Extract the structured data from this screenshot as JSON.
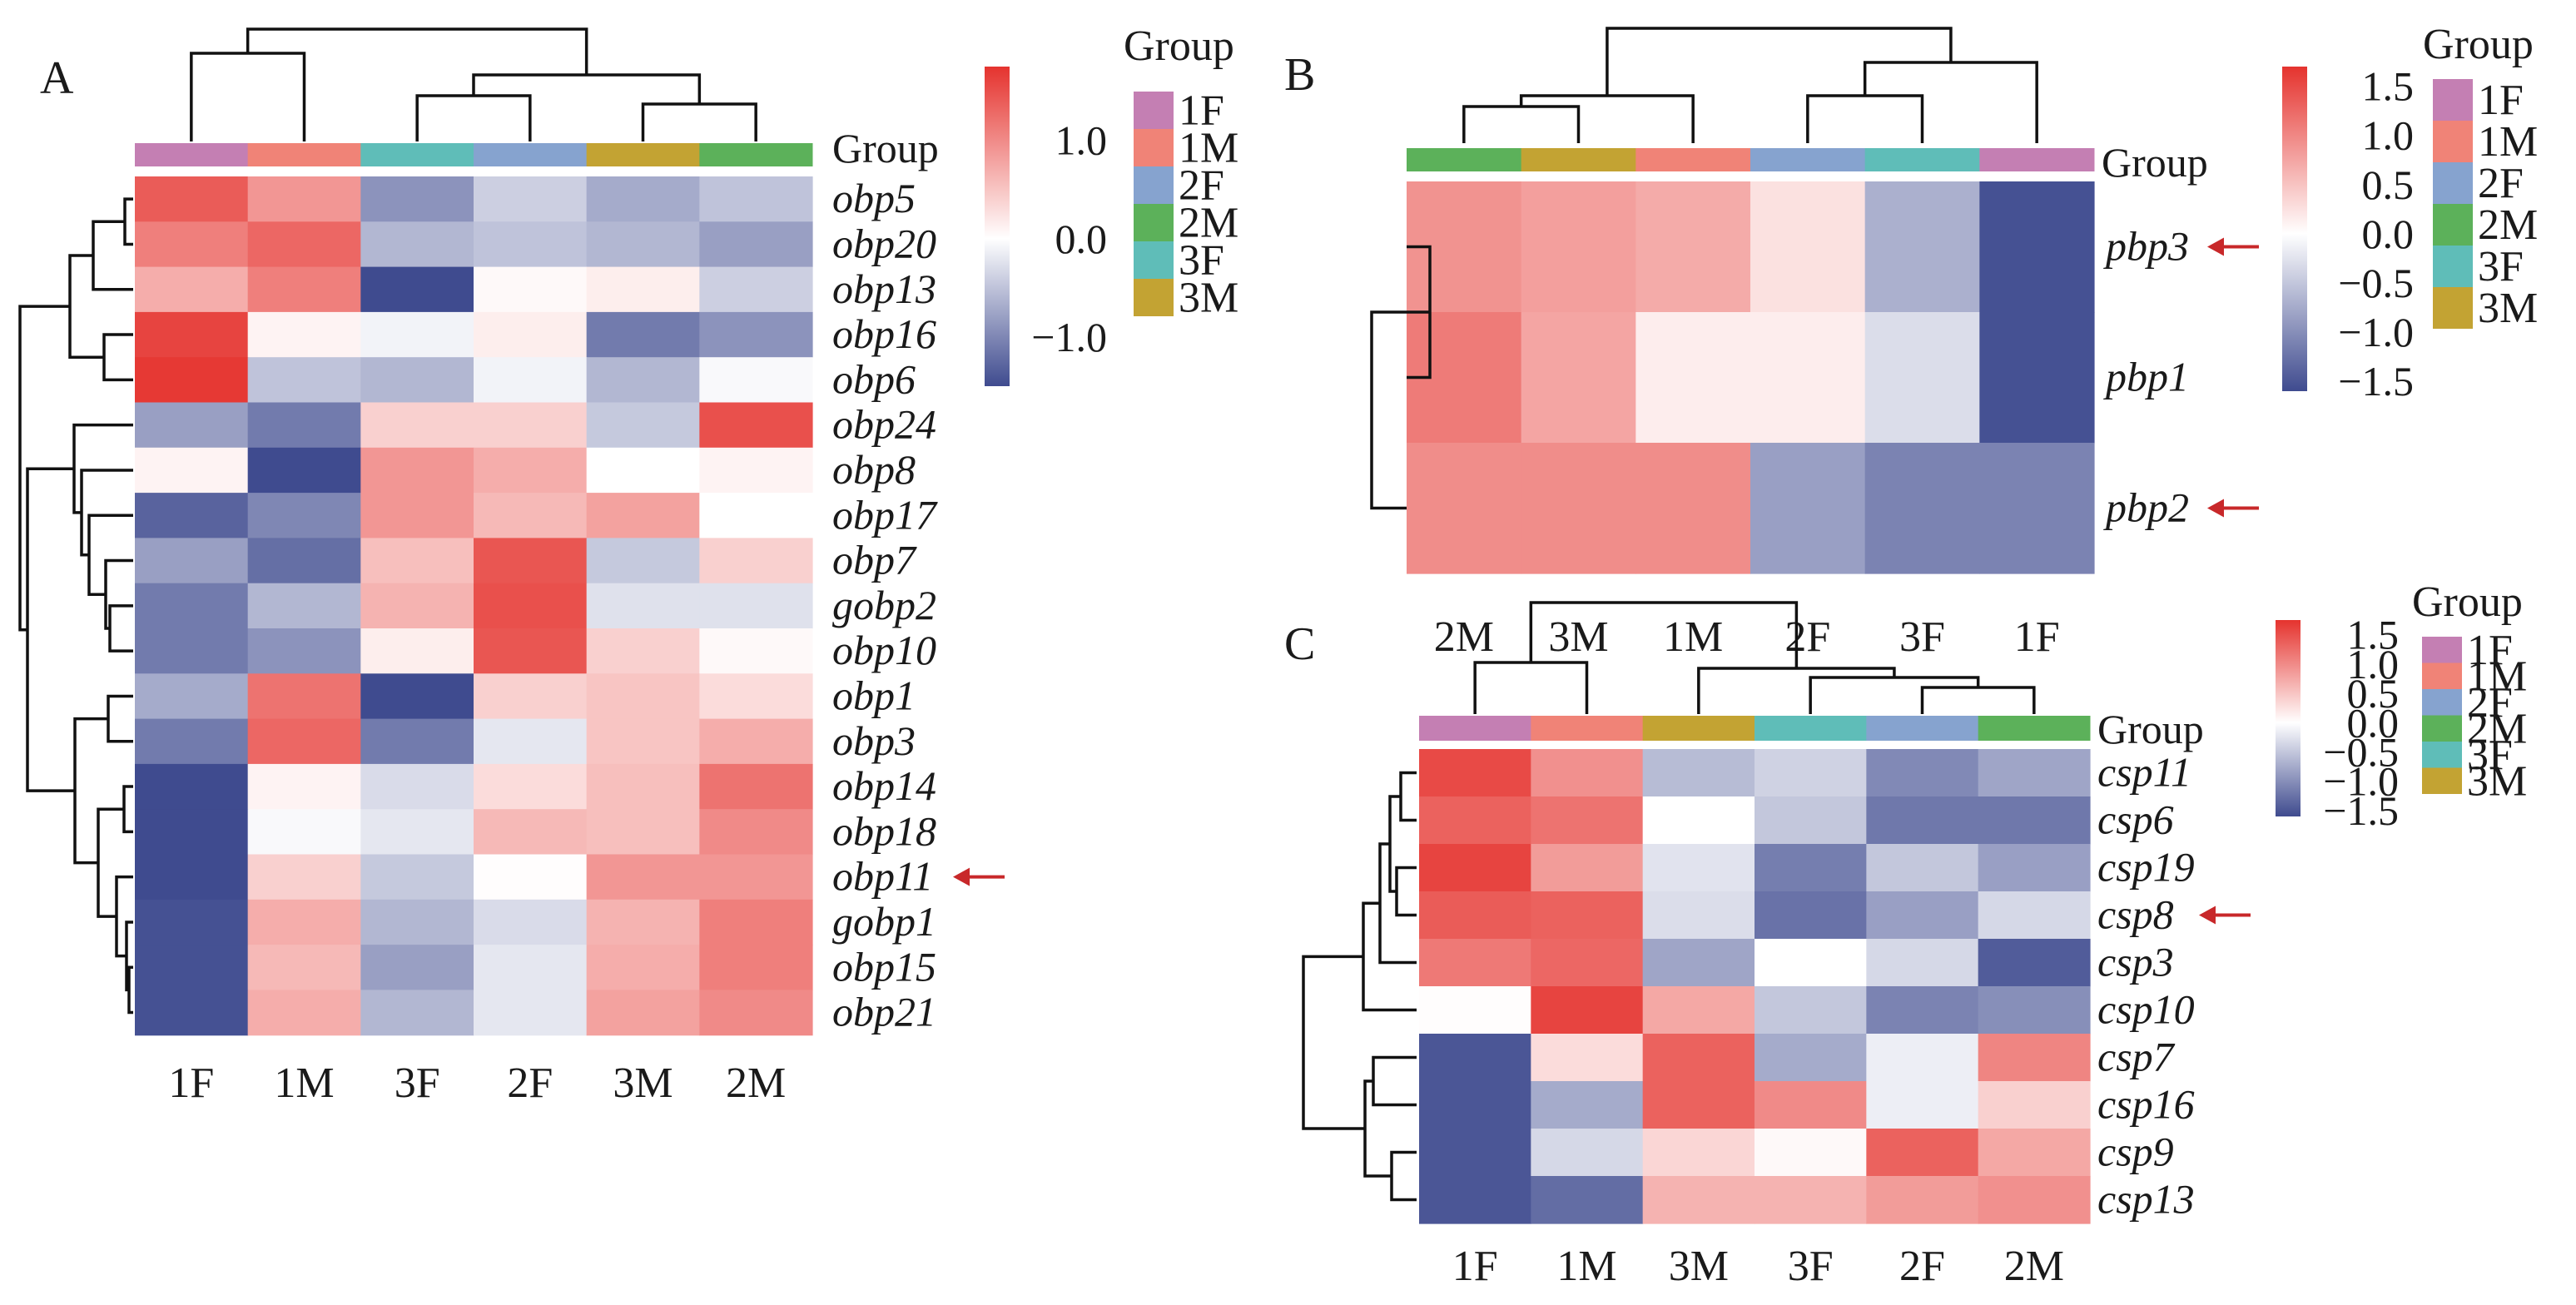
{
  "chart_data": [
    {
      "type": "heatmap",
      "panel": "A",
      "title": "",
      "annotation_label": "Group",
      "columns": [
        "1F",
        "1M",
        "3F",
        "2F",
        "3M",
        "2M"
      ],
      "rows": [
        "obp5",
        "obp20",
        "obp13",
        "obp16",
        "obp6",
        "obp24",
        "obp8",
        "obp17",
        "obp7",
        "gobp2",
        "obp10",
        "obp1",
        "obp3",
        "obp14",
        "obp18",
        "obp11",
        "gobp1",
        "obp15",
        "obp21"
      ],
      "highlighted_rows": [
        "obp11"
      ],
      "values": [
        [
          1.4,
          0.9,
          -0.9,
          -0.4,
          -0.7,
          -0.5
        ],
        [
          1.1,
          1.3,
          -0.6,
          -0.5,
          -0.6,
          -0.8
        ],
        [
          0.7,
          1.1,
          -1.5,
          0.05,
          0.15,
          -0.4
        ],
        [
          1.6,
          0.1,
          -0.1,
          0.15,
          -1.1,
          -0.9
        ],
        [
          1.7,
          -0.5,
          -0.6,
          -0.1,
          -0.6,
          -0.05
        ],
        [
          -0.8,
          -1.1,
          0.4,
          0.4,
          -0.45,
          1.5
        ],
        [
          0.1,
          -1.5,
          0.9,
          0.7,
          0.0,
          0.1
        ],
        [
          -1.3,
          -1.0,
          0.9,
          0.6,
          0.8,
          0.0
        ],
        [
          -0.8,
          -1.2,
          0.55,
          1.45,
          -0.45,
          0.4
        ],
        [
          -1.1,
          -0.6,
          0.65,
          1.5,
          -0.25,
          -0.25
        ],
        [
          -1.1,
          -0.9,
          0.15,
          1.45,
          0.4,
          0.05
        ],
        [
          -0.7,
          1.2,
          -1.5,
          0.4,
          0.5,
          0.3
        ],
        [
          -1.1,
          1.3,
          -1.1,
          -0.2,
          0.5,
          0.7
        ],
        [
          -1.5,
          0.1,
          -0.3,
          0.3,
          0.55,
          1.2
        ],
        [
          -1.5,
          -0.05,
          -0.2,
          0.6,
          0.55,
          1.0
        ],
        [
          -1.5,
          0.4,
          -0.45,
          0.02,
          0.9,
          0.9
        ],
        [
          -1.45,
          0.7,
          -0.6,
          -0.3,
          0.65,
          1.1
        ],
        [
          -1.45,
          0.6,
          -0.8,
          -0.2,
          0.7,
          1.1
        ],
        [
          -1.45,
          0.7,
          -0.6,
          -0.2,
          0.8,
          1.0
        ]
      ],
      "colorbar": {
        "min": -1.5,
        "max": 1.75,
        "ticks": [
          1.0,
          0.0,
          -1.0
        ],
        "tick_labels": [
          "1.0",
          "0.0",
          "−1.0"
        ]
      },
      "legend": {
        "title": "Group",
        "placement": "right"
      }
    },
    {
      "type": "heatmap",
      "panel": "B",
      "title": "",
      "annotation_label": "Group",
      "columns": [
        "2M",
        "3M",
        "1M",
        "2F",
        "3F",
        "1F"
      ],
      "rows": [
        "pbp3",
        "pbp1",
        "pbp2"
      ],
      "highlighted_rows": [
        "pbp3",
        "pbp2"
      ],
      "values": [
        [
          0.9,
          0.8,
          0.7,
          0.25,
          -0.7,
          -1.55
        ],
        [
          1.1,
          0.75,
          0.15,
          0.15,
          -0.3,
          -1.55
        ],
        [
          0.95,
          0.95,
          0.95,
          -0.85,
          -1.1,
          -1.1
        ]
      ],
      "colorbar": {
        "min": -1.6,
        "max": 1.7,
        "ticks": [
          1.5,
          1.0,
          0.5,
          0.0,
          -0.5,
          -1.0,
          -1.5
        ],
        "tick_labels": [
          "1.5",
          "1.0",
          "0.5",
          "0.0",
          "−0.5",
          "−1.0",
          "−1.5"
        ]
      },
      "legend": {
        "title": "Group",
        "placement": "right"
      }
    },
    {
      "type": "heatmap",
      "panel": "C",
      "title": "",
      "annotation_label": "Group",
      "columns": [
        "1F",
        "1M",
        "3M",
        "3F",
        "2F",
        "2M"
      ],
      "rows": [
        "csp11",
        "csp6",
        "csp19",
        "csp8",
        "csp3",
        "csp10",
        "csp7",
        "csp16",
        "csp9",
        "csp13"
      ],
      "highlighted_rows": [
        "csp8"
      ],
      "values": [
        [
          1.55,
          0.95,
          -0.6,
          -0.4,
          -1.05,
          -0.8
        ],
        [
          1.35,
          1.2,
          0.0,
          -0.5,
          -1.2,
          -1.2
        ],
        [
          1.6,
          0.85,
          -0.25,
          -1.15,
          -0.5,
          -0.85
        ],
        [
          1.4,
          1.35,
          -0.3,
          -1.25,
          -0.85,
          -0.35
        ],
        [
          1.15,
          1.3,
          -0.8,
          0.0,
          -0.35,
          -1.45
        ],
        [
          0.02,
          1.6,
          0.75,
          -0.5,
          -1.1,
          -1.0
        ],
        [
          -1.5,
          0.3,
          1.35,
          -0.75,
          -0.15,
          1.05
        ],
        [
          -1.5,
          -0.75,
          1.35,
          1.0,
          -0.15,
          0.4
        ],
        [
          -1.5,
          -0.35,
          0.35,
          0.05,
          1.35,
          0.75
        ],
        [
          -1.5,
          -1.3,
          0.65,
          0.65,
          0.85,
          0.95
        ]
      ],
      "colorbar": {
        "min": -1.6,
        "max": 1.75,
        "ticks": [
          1.5,
          1.0,
          0.5,
          0.0,
          -0.5,
          -1.0,
          -1.5
        ],
        "tick_labels": [
          "1.5",
          "1.0",
          "0.5",
          "0.0",
          "−0.5",
          "−1.0",
          "−1.5"
        ]
      },
      "legend": {
        "title": "Group",
        "placement": "right"
      }
    }
  ],
  "group_legend": {
    "title": "Group",
    "items": [
      {
        "label": "1F",
        "color": "#c47fb3"
      },
      {
        "label": "1M",
        "color": "#f08377"
      },
      {
        "label": "2F",
        "color": "#86a3cf"
      },
      {
        "label": "2M",
        "color": "#5cb15a"
      },
      {
        "label": "3F",
        "color": "#5fbdb8"
      },
      {
        "label": "3M",
        "color": "#c3a333"
      }
    ]
  },
  "colors": {
    "low": "#3f4b8f",
    "mid": "#ffffff",
    "high": "#e5332e",
    "arrow": "#c8282a"
  },
  "panel_labels": [
    "A",
    "B",
    "C"
  ]
}
